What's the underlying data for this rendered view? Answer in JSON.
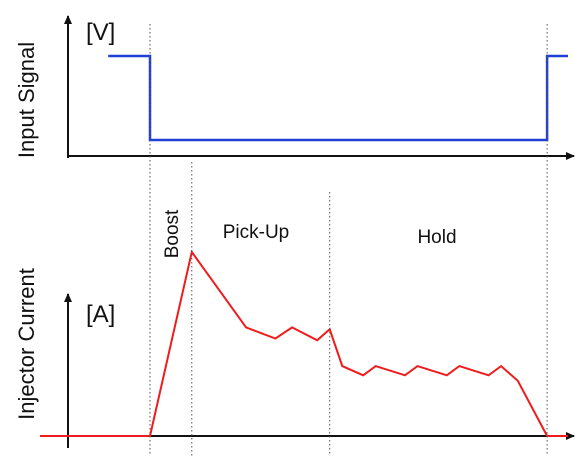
{
  "chart_data": [
    {
      "type": "line",
      "title": "",
      "ylabel": "Input Signal",
      "unit_label": "[V]",
      "xlabel": "",
      "grid": false,
      "color": "#1f3fd6",
      "series": [
        {
          "x": [
            0,
            1,
            1,
            10.5,
            10.5,
            11
          ],
          "y": [
            1,
            1,
            0,
            0,
            1,
            1
          ]
        }
      ]
    },
    {
      "type": "line",
      "title": "",
      "ylabel": "Injector Current",
      "unit_label": "[A]",
      "xlabel": "",
      "grid": false,
      "color": "#ee1c1c",
      "phases": [
        {
          "label": "Boost",
          "start": 1,
          "end": 2
        },
        {
          "label": "Pick-Up",
          "start": 2,
          "end": 5.3
        },
        {
          "label": "Hold",
          "start": 5.3,
          "end": 10.5
        }
      ],
      "series": [
        {
          "x": [
            -2,
            1,
            2,
            3.3,
            4.0,
            4.4,
            5.0,
            5.3,
            5.6,
            6.1,
            6.4,
            7.1,
            7.4,
            8.1,
            8.4,
            9.1,
            9.4,
            9.8,
            10.5,
            11
          ],
          "y": [
            0,
            0,
            1.0,
            0.59,
            0.53,
            0.59,
            0.52,
            0.58,
            0.38,
            0.33,
            0.38,
            0.33,
            0.38,
            0.33,
            0.38,
            0.33,
            0.38,
            0.3,
            0,
            0
          ]
        }
      ]
    }
  ]
}
